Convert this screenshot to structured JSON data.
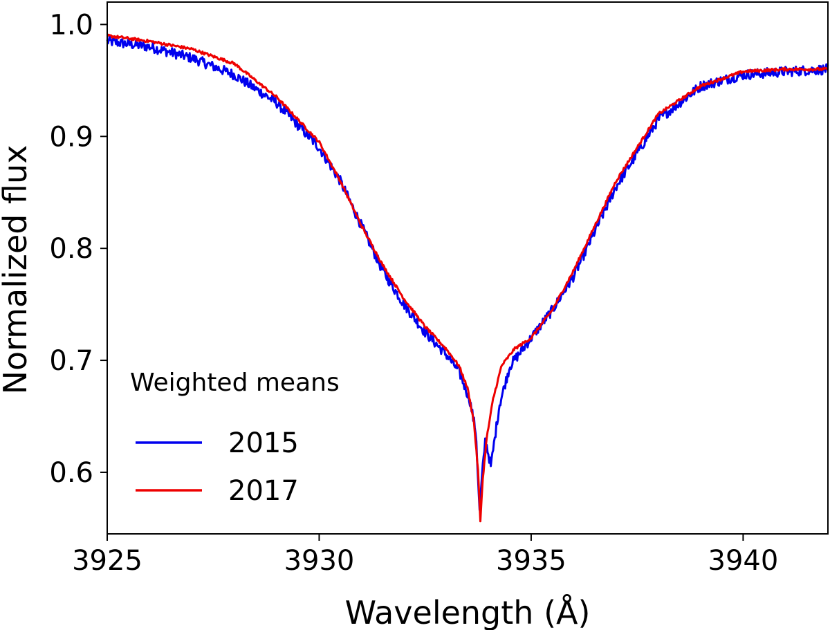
{
  "chart_data": {
    "type": "line",
    "title": "",
    "xlabel": "Wavelength (Å)",
    "ylabel": "Normalized flux",
    "xlim": [
      3925,
      3942
    ],
    "ylim": [
      0.545,
      1.02
    ],
    "xticks": [
      3925,
      3930,
      3935,
      3940
    ],
    "xtick_labels": [
      "3925",
      "3930",
      "3935",
      "3940"
    ],
    "yticks": [
      0.6,
      0.7,
      0.8,
      0.9,
      1.0
    ],
    "ytick_labels": [
      "0.6",
      "0.7",
      "0.8",
      "0.9",
      "1.0"
    ],
    "grid": false,
    "legend": {
      "title": "Weighted means",
      "location": "lower-left",
      "entries": [
        "2015",
        "2017"
      ]
    },
    "series": [
      {
        "name": "2015",
        "color": "#0000ee",
        "noisy": true,
        "x": [
          3925.0,
          3926.0,
          3927.0,
          3928.0,
          3929.0,
          3930.0,
          3930.5,
          3931.0,
          3931.5,
          3932.0,
          3932.5,
          3933.0,
          3933.3,
          3933.55,
          3933.7,
          3933.78,
          3933.85,
          3933.92,
          3934.05,
          3934.25,
          3934.5,
          3935.0,
          3935.5,
          3936.0,
          3936.5,
          3937.0,
          3937.5,
          3938.0,
          3939.0,
          3940.0,
          3941.0,
          3942.0
        ],
        "y": [
          0.985,
          0.98,
          0.97,
          0.955,
          0.93,
          0.89,
          0.86,
          0.82,
          0.78,
          0.75,
          0.725,
          0.705,
          0.69,
          0.665,
          0.635,
          0.565,
          0.6,
          0.63,
          0.605,
          0.66,
          0.695,
          0.72,
          0.745,
          0.775,
          0.815,
          0.855,
          0.885,
          0.915,
          0.945,
          0.955,
          0.958,
          0.96
        ]
      },
      {
        "name": "2017",
        "color": "#ee0000",
        "noisy": false,
        "x": [
          3925.0,
          3926.0,
          3927.0,
          3928.0,
          3929.0,
          3930.0,
          3930.5,
          3931.0,
          3931.5,
          3932.0,
          3932.5,
          3933.0,
          3933.3,
          3933.5,
          3933.65,
          3933.75,
          3933.8,
          3933.85,
          3933.95,
          3934.1,
          3934.3,
          3934.6,
          3935.0,
          3935.5,
          3936.0,
          3936.5,
          3937.0,
          3937.5,
          3938.0,
          3939.0,
          3940.0,
          3941.0,
          3942.0
        ],
        "y": [
          0.99,
          0.985,
          0.978,
          0.965,
          0.935,
          0.895,
          0.86,
          0.82,
          0.785,
          0.755,
          0.73,
          0.71,
          0.695,
          0.675,
          0.645,
          0.6,
          0.555,
          0.59,
          0.63,
          0.665,
          0.695,
          0.71,
          0.72,
          0.745,
          0.78,
          0.82,
          0.86,
          0.89,
          0.92,
          0.945,
          0.958,
          0.96,
          0.96
        ]
      }
    ]
  }
}
